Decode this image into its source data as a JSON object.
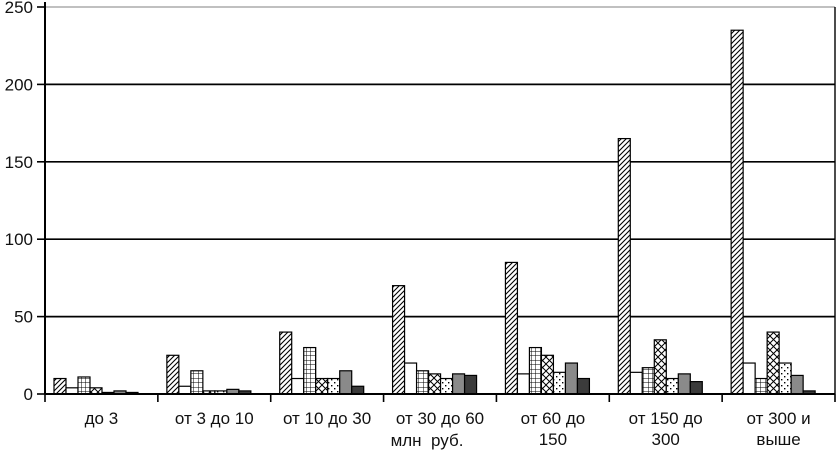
{
  "chart_data": {
    "type": "bar",
    "title": "",
    "xlabel": "млн  руб.",
    "ylabel": "",
    "ylim": [
      0,
      250
    ],
    "yticks": [
      0,
      50,
      100,
      150,
      200,
      250
    ],
    "grid": true,
    "legend_position": "none",
    "categories": [
      "до 3",
      "от 3 до 10",
      "от 10 до 30",
      "от 30 до 60",
      "от 60 до 150",
      "от 150 до 300",
      "от 300 и выше"
    ],
    "category_label_lines": [
      [
        "до 3"
      ],
      [
        "от 3 до 10"
      ],
      [
        "от 10 до 30"
      ],
      [
        "от 30 до 60"
      ],
      [
        "от 60 до",
        "150"
      ],
      [
        "от 150 до",
        "300"
      ],
      [
        "от 300 и",
        "выше"
      ]
    ],
    "series": [
      {
        "name": "series-1-diagonal-hatch",
        "pattern": "diagonal-hatch",
        "values": [
          10,
          25,
          40,
          70,
          85,
          165,
          235
        ]
      },
      {
        "name": "series-2-white",
        "pattern": "solid-white",
        "values": [
          4,
          5,
          10,
          20,
          13,
          14,
          20
        ]
      },
      {
        "name": "series-3-grid",
        "pattern": "grid",
        "values": [
          11,
          15,
          30,
          15,
          30,
          17,
          10
        ]
      },
      {
        "name": "series-4-crosshatch",
        "pattern": "diagonal-crosshatch",
        "values": [
          4,
          2,
          10,
          13,
          25,
          35,
          40
        ]
      },
      {
        "name": "series-5-dots",
        "pattern": "dots",
        "values": [
          1,
          2,
          10,
          10,
          14,
          10,
          20
        ]
      },
      {
        "name": "series-6-gray",
        "pattern": "solid-gray",
        "values": [
          2,
          3,
          15,
          13,
          20,
          13,
          12
        ]
      },
      {
        "name": "series-7-dark",
        "pattern": "solid-dark",
        "values": [
          1,
          2,
          5,
          12,
          10,
          8,
          2
        ]
      }
    ],
    "colors": {
      "stroke": "#000000",
      "gridline": "#000000",
      "top_gridline": "#9a9a9a",
      "solid_gray": "#8a8a8a",
      "solid_dark": "#3b3b3b",
      "solid_white": "#ffffff"
    }
  }
}
